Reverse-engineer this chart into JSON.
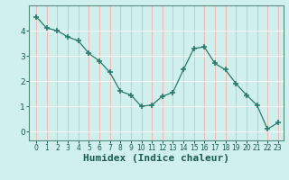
{
  "x": [
    0,
    1,
    2,
    3,
    4,
    5,
    6,
    7,
    8,
    9,
    10,
    11,
    12,
    13,
    14,
    15,
    16,
    17,
    18,
    19,
    20,
    21,
    22,
    23
  ],
  "y": [
    4.55,
    4.1,
    4.0,
    3.75,
    3.6,
    3.1,
    2.8,
    2.35,
    1.6,
    1.45,
    1.0,
    1.05,
    1.4,
    1.55,
    2.45,
    3.3,
    3.35,
    2.7,
    2.45,
    1.9,
    1.45,
    1.05,
    0.1,
    0.35
  ],
  "line_color": "#2a7a6a",
  "marker": "+",
  "marker_size": 4,
  "marker_linewidth": 1.2,
  "xlabel": "Humidex (Indice chaleur)",
  "ylim": [
    -0.35,
    5.0
  ],
  "xlim": [
    -0.7,
    23.5
  ],
  "background_color": "#cff0ec",
  "grid_color_h": "#ffffff",
  "grid_color_v": "#f0b8b8",
  "tick_color": "#1a5a50",
  "axis_color": "#5a8a80",
  "xlabel_fontsize": 8,
  "yticks": [
    0,
    1,
    2,
    3,
    4
  ],
  "xticks": [
    0,
    1,
    2,
    3,
    4,
    5,
    6,
    7,
    8,
    9,
    10,
    11,
    12,
    13,
    14,
    15,
    16,
    17,
    18,
    19,
    20,
    21,
    22,
    23
  ]
}
